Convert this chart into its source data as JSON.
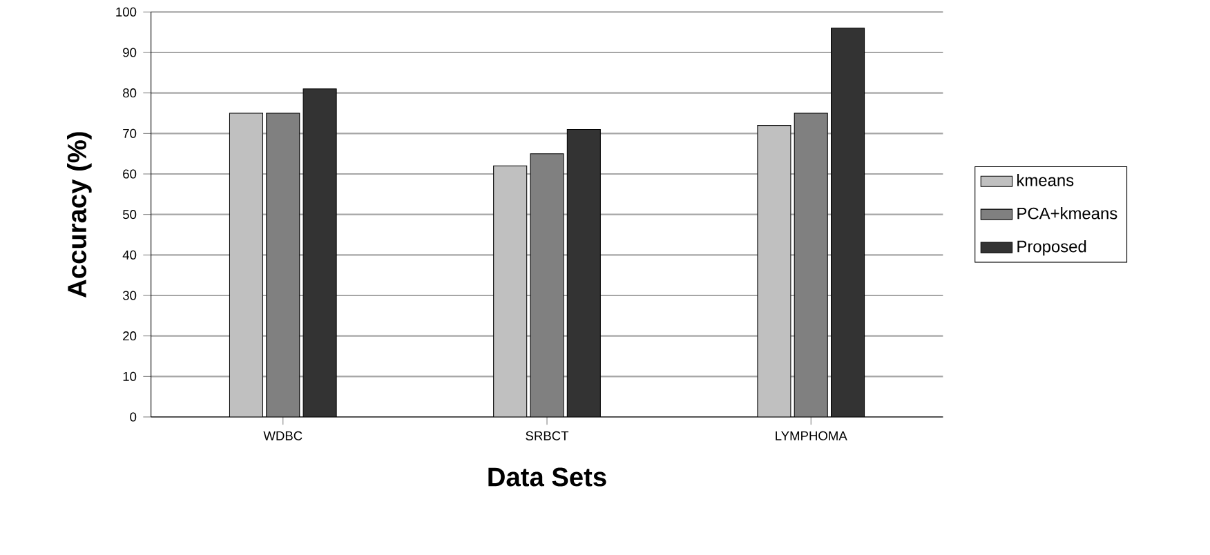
{
  "chart_data": {
    "type": "bar",
    "xlabel": "Data Sets",
    "ylabel": "Accuracy (%)",
    "categories": [
      "WDBC",
      "SRBCT",
      "LYMPHOMA"
    ],
    "series": [
      {
        "name": "kmeans",
        "color": "#c0c0c0",
        "values": [
          75,
          62,
          72
        ]
      },
      {
        "name": "PCA+kmeans",
        "color": "#808080",
        "values": [
          75,
          65,
          75
        ]
      },
      {
        "name": "Proposed",
        "color": "#333333",
        "values": [
          81,
          71,
          96
        ]
      }
    ],
    "ylim": [
      0,
      100
    ],
    "yticks": [
      0,
      10,
      20,
      30,
      40,
      50,
      60,
      70,
      80,
      90,
      100
    ],
    "grid": "y",
    "legend": "right"
  }
}
